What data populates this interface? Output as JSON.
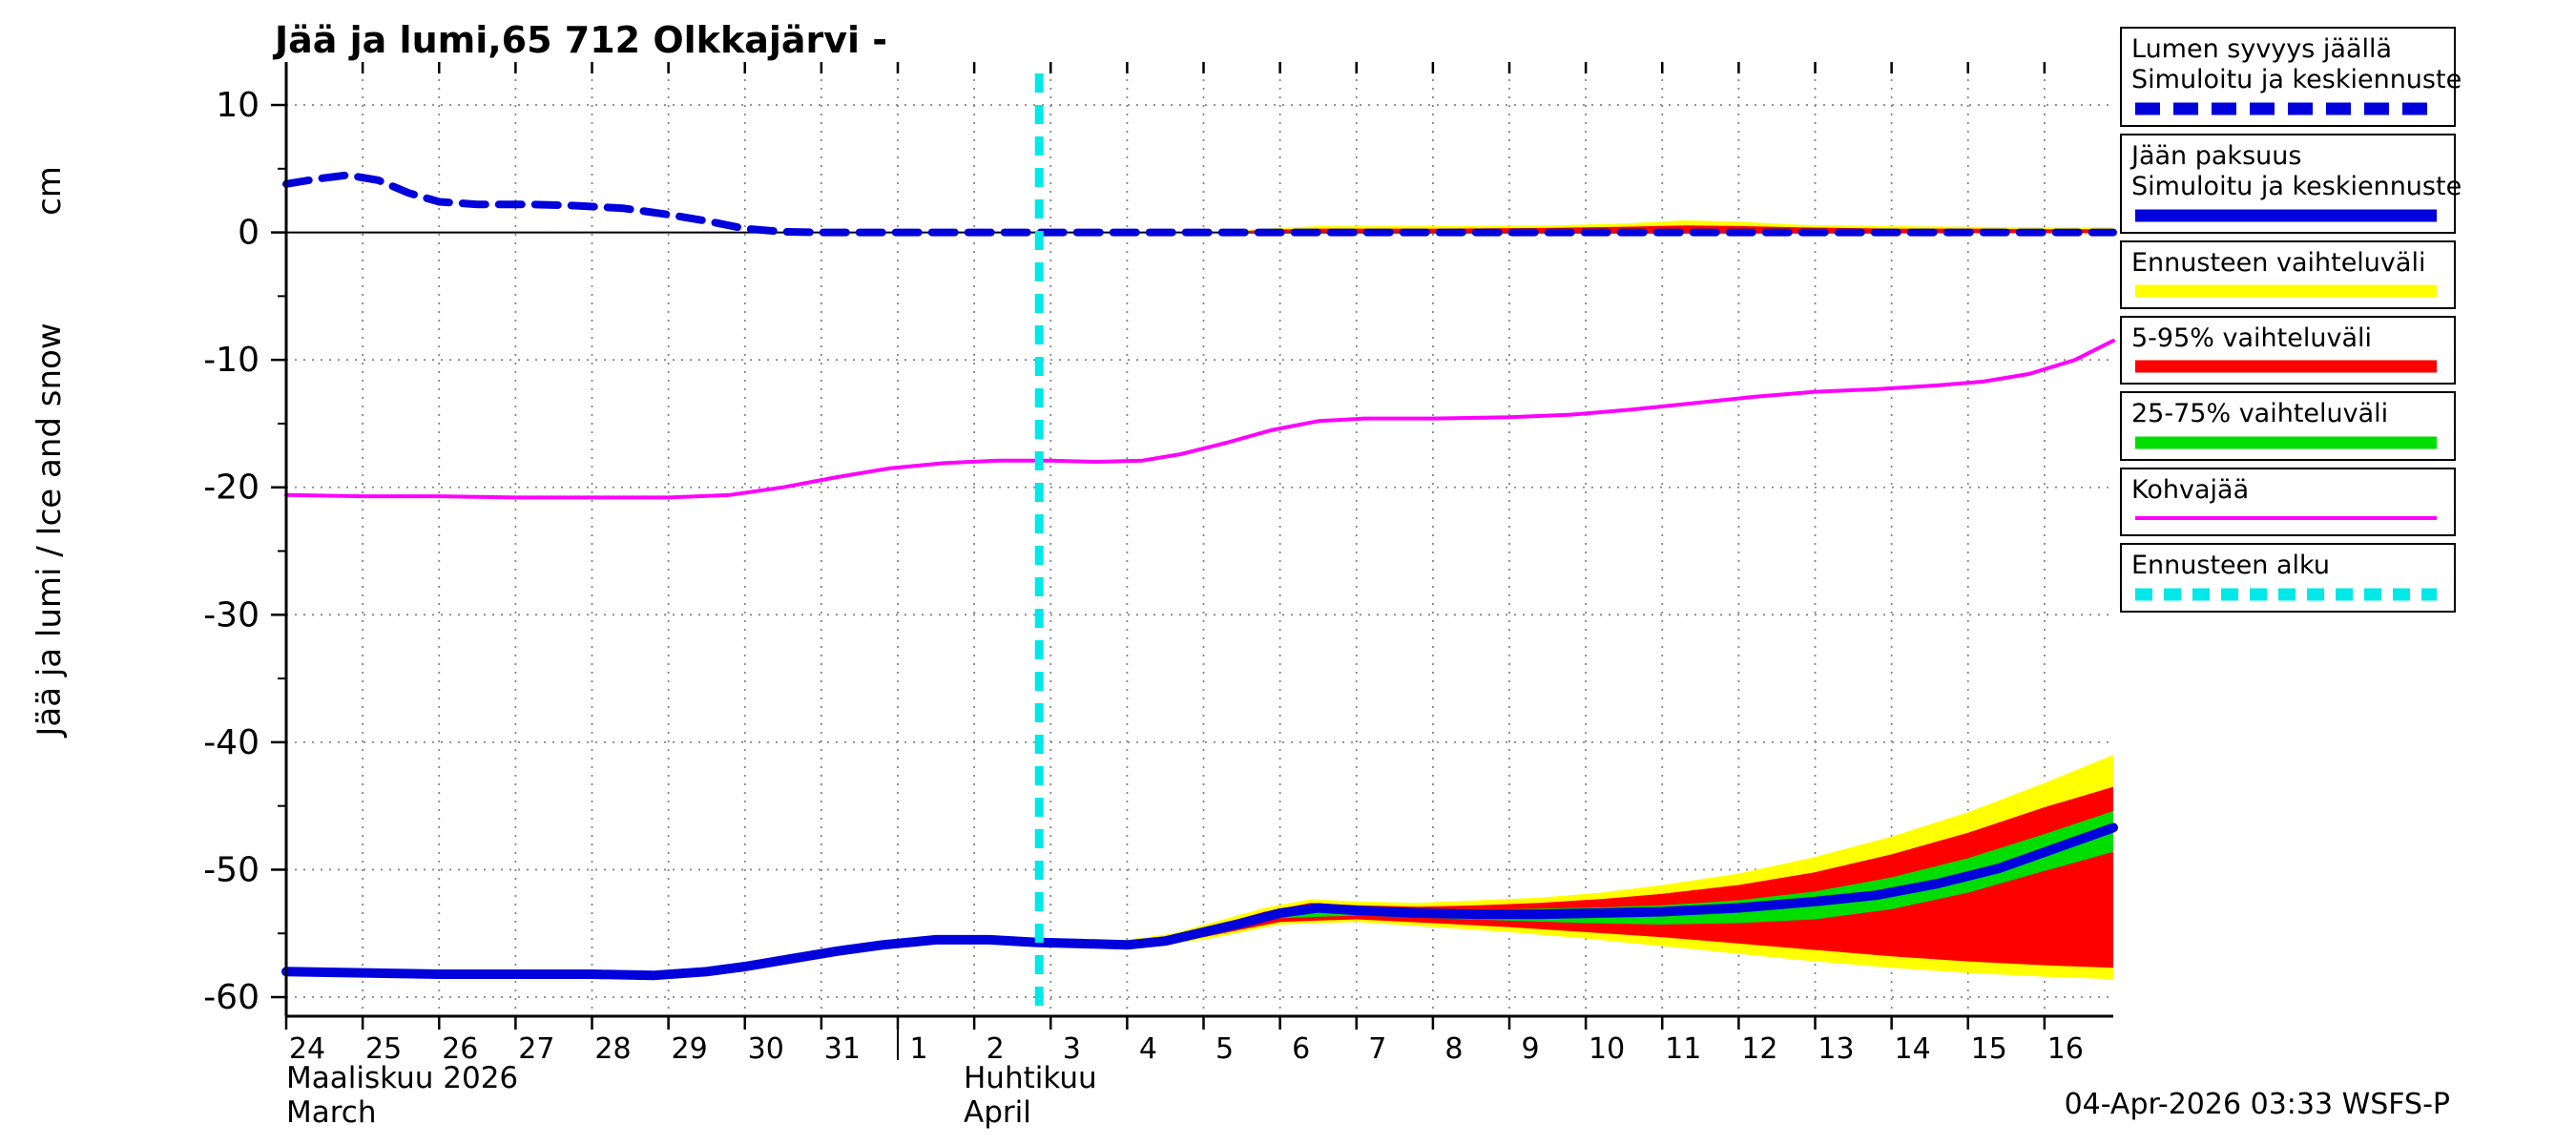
{
  "title": "Jää ja lumi,65 712 Olkkajärvi -",
  "footer": "04-Apr-2026 03:33 WSFS-P",
  "y_axis": {
    "unit": "cm",
    "label": "Jää ja lumi / Ice and snow",
    "ticks": [
      10,
      0,
      -10,
      -20,
      -30,
      -40,
      -50,
      -60
    ]
  },
  "x_axis": {
    "march_ticks": [
      "24",
      "25",
      "26",
      "27",
      "28",
      "29",
      "30",
      "31"
    ],
    "april_ticks": [
      "1",
      "2",
      "3",
      "4",
      "5",
      "6",
      "7",
      "8",
      "9",
      "10",
      "11",
      "12",
      "13",
      "14",
      "15",
      "16"
    ],
    "month_left_fi": "Maaliskuu 2026",
    "month_left_en": "March",
    "month_right_fi": "Huhtikuu",
    "month_right_en": "April"
  },
  "legend": {
    "items": [
      {
        "line1": "Lumen syvyys jäällä",
        "line2": "Simuloitu ja keskiennuste",
        "color": "#0000dd",
        "style": "dashed",
        "thick": true
      },
      {
        "line1": "Jään paksuus",
        "line2": "Simuloitu ja keskiennuste",
        "color": "#0000dd",
        "style": "solid",
        "thick": true
      },
      {
        "line1": "Ennusteen vaihteluväli",
        "color": "#ffff00",
        "style": "solid",
        "thick": true
      },
      {
        "line1": "5-95% vaihteluväli",
        "color": "#ff0000",
        "style": "solid",
        "thick": true
      },
      {
        "line1": "25-75% vaihteluväli",
        "color": "#00dd00",
        "style": "solid",
        "thick": true
      },
      {
        "line1": "Kohvajää",
        "color": "#ff00ff",
        "style": "solid",
        "thick": false
      },
      {
        "line1": "Ennusteen alku",
        "color": "#00e8e8",
        "style": "dashed",
        "thick": true
      }
    ]
  },
  "chart_data": {
    "type": "line",
    "title": "Jää ja lumi,65 712 Olkkajärvi -",
    "ylabel": "Jää ja lumi / Ice and snow (cm)",
    "ylim": [
      -61.5,
      13.4
    ],
    "x_encoding": "days since 24 March 2026 (0 = Mar 24, 8 = Apr 1, 23 = Apr 16)",
    "grid": true,
    "zero_line": true,
    "forecast_start_x": 9.85,
    "forecast_line_color": "#00e8e8",
    "series": [
      {
        "name": "kohvajaa",
        "label": "Kohvajää",
        "color": "#ff00ff",
        "width": 4,
        "points": [
          [
            0,
            -20.6
          ],
          [
            1,
            -20.7
          ],
          [
            2,
            -20.7
          ],
          [
            3,
            -20.8
          ],
          [
            4,
            -20.8
          ],
          [
            5,
            -20.8
          ],
          [
            5.8,
            -20.6
          ],
          [
            6.5,
            -20.0
          ],
          [
            7.2,
            -19.2
          ],
          [
            7.9,
            -18.5
          ],
          [
            8.6,
            -18.1
          ],
          [
            9.3,
            -17.9
          ],
          [
            10,
            -17.9
          ],
          [
            10.6,
            -18.0
          ],
          [
            11.2,
            -17.9
          ],
          [
            11.7,
            -17.4
          ],
          [
            12.3,
            -16.5
          ],
          [
            12.9,
            -15.5
          ],
          [
            13.5,
            -14.8
          ],
          [
            14.1,
            -14.6
          ],
          [
            15,
            -14.6
          ],
          [
            16,
            -14.5
          ],
          [
            16.8,
            -14.3
          ],
          [
            17.6,
            -13.9
          ],
          [
            18.4,
            -13.4
          ],
          [
            19.2,
            -12.9
          ],
          [
            20,
            -12.5
          ],
          [
            20.8,
            -12.3
          ],
          [
            21.6,
            -12.0
          ],
          [
            22.2,
            -11.7
          ],
          [
            22.8,
            -11.1
          ],
          [
            23.4,
            -10.0
          ],
          [
            23.9,
            -8.5
          ]
        ]
      },
      {
        "name": "ice-thickness-simulated-median",
        "label": "Jään paksuus, simuloitu ja keskiennuste",
        "color": "#0000dd",
        "width": 10,
        "points": [
          [
            0,
            -58.0
          ],
          [
            1,
            -58.1
          ],
          [
            2,
            -58.2
          ],
          [
            3,
            -58.2
          ],
          [
            4,
            -58.2
          ],
          [
            4.8,
            -58.3
          ],
          [
            5.5,
            -58.0
          ],
          [
            6,
            -57.6
          ],
          [
            6.6,
            -57.0
          ],
          [
            7.2,
            -56.4
          ],
          [
            7.8,
            -55.9
          ],
          [
            8.5,
            -55.5
          ],
          [
            9.2,
            -55.5
          ],
          [
            9.8,
            -55.7
          ],
          [
            10.4,
            -55.8
          ],
          [
            11,
            -55.9
          ],
          [
            11.5,
            -55.6
          ],
          [
            12,
            -54.9
          ],
          [
            12.5,
            -54.2
          ],
          [
            13,
            -53.4
          ],
          [
            13.5,
            -53.0
          ],
          [
            14,
            -53.2
          ],
          [
            14.8,
            -53.4
          ],
          [
            15.6,
            -53.5
          ],
          [
            16.4,
            -53.5
          ],
          [
            17.2,
            -53.4
          ],
          [
            18,
            -53.3
          ],
          [
            19,
            -53.0
          ],
          [
            20,
            -52.5
          ],
          [
            20.8,
            -52.0
          ],
          [
            21.6,
            -51.1
          ],
          [
            22.4,
            -49.9
          ],
          [
            23.2,
            -48.2
          ],
          [
            23.9,
            -46.7
          ]
        ]
      },
      {
        "name": "snow-depth-on-ice-simulated-median",
        "label": "Lumen syvyys jäällä, simuloitu ja keskiennuste",
        "color": "#0000dd",
        "width": 8,
        "dash": "24 14",
        "points": [
          [
            0,
            3.8
          ],
          [
            0.4,
            4.2
          ],
          [
            0.8,
            4.5
          ],
          [
            1.2,
            4.1
          ],
          [
            1.6,
            3.1
          ],
          [
            2,
            2.4
          ],
          [
            2.5,
            2.2
          ],
          [
            3.2,
            2.2
          ],
          [
            3.8,
            2.1
          ],
          [
            4.4,
            1.9
          ],
          [
            5,
            1.4
          ],
          [
            5.5,
            0.9
          ],
          [
            6,
            0.3
          ],
          [
            6.5,
            0.05
          ],
          [
            7,
            0
          ],
          [
            23.9,
            0
          ]
        ]
      }
    ],
    "bands": [
      {
        "name": "ice-forecast-range",
        "label": "Ennusteen vaihteluväli",
        "color": "#ffff00",
        "upper": [
          [
            10,
            -55.7
          ],
          [
            11,
            -55.5
          ],
          [
            11.6,
            -55.0
          ],
          [
            12.2,
            -54.0
          ],
          [
            12.8,
            -53.0
          ],
          [
            13.4,
            -52.3
          ],
          [
            14,
            -52.5
          ],
          [
            14.8,
            -52.6
          ],
          [
            15.6,
            -52.4
          ],
          [
            16.4,
            -52.2
          ],
          [
            17.2,
            -51.8
          ],
          [
            18,
            -51.2
          ],
          [
            19,
            -50.3
          ],
          [
            20,
            -49.0
          ],
          [
            21,
            -47.4
          ],
          [
            22,
            -45.5
          ],
          [
            23,
            -43.2
          ],
          [
            23.9,
            -41.0
          ]
        ],
        "lower": [
          [
            10,
            -55.9
          ],
          [
            11,
            -56.2
          ],
          [
            12,
            -55.5
          ],
          [
            13,
            -54.3
          ],
          [
            14,
            -54.1
          ],
          [
            15,
            -54.5
          ],
          [
            16,
            -54.9
          ],
          [
            17,
            -55.4
          ],
          [
            18,
            -56.0
          ],
          [
            19,
            -56.6
          ],
          [
            20,
            -57.2
          ],
          [
            21,
            -57.7
          ],
          [
            22,
            -58.1
          ],
          [
            23,
            -58.4
          ],
          [
            23.9,
            -58.6
          ]
        ]
      },
      {
        "name": "ice-5-95-range",
        "label": "5-95% vaihteluväli",
        "color": "#ff0000",
        "upper": [
          [
            10,
            -55.7
          ],
          [
            11,
            -55.6
          ],
          [
            11.6,
            -55.2
          ],
          [
            12.2,
            -54.3
          ],
          [
            12.8,
            -53.3
          ],
          [
            13.4,
            -52.6
          ],
          [
            14,
            -52.8
          ],
          [
            14.8,
            -52.9
          ],
          [
            15.6,
            -52.8
          ],
          [
            16.4,
            -52.6
          ],
          [
            17.2,
            -52.3
          ],
          [
            18,
            -51.9
          ],
          [
            19,
            -51.2
          ],
          [
            20,
            -50.2
          ],
          [
            21,
            -48.8
          ],
          [
            22,
            -47.1
          ],
          [
            23,
            -45.1
          ],
          [
            23.9,
            -43.5
          ]
        ],
        "lower": [
          [
            10,
            -55.9
          ],
          [
            11,
            -56.1
          ],
          [
            12,
            -55.3
          ],
          [
            13,
            -54.1
          ],
          [
            14,
            -53.9
          ],
          [
            15,
            -54.2
          ],
          [
            16,
            -54.5
          ],
          [
            17,
            -54.9
          ],
          [
            18,
            -55.3
          ],
          [
            19,
            -55.8
          ],
          [
            20,
            -56.3
          ],
          [
            21,
            -56.8
          ],
          [
            22,
            -57.2
          ],
          [
            23,
            -57.5
          ],
          [
            23.9,
            -57.7
          ]
        ]
      },
      {
        "name": "ice-25-75-range",
        "label": "25-75% vaihteluväli",
        "color": "#00dd00",
        "upper": [
          [
            10,
            -55.75
          ],
          [
            11,
            -55.7
          ],
          [
            11.6,
            -55.3
          ],
          [
            12.2,
            -54.5
          ],
          [
            12.8,
            -53.5
          ],
          [
            13.4,
            -52.8
          ],
          [
            14,
            -53.0
          ],
          [
            15,
            -53.1
          ],
          [
            16,
            -53.1
          ],
          [
            17,
            -53.0
          ],
          [
            18,
            -52.8
          ],
          [
            19,
            -52.4
          ],
          [
            20,
            -51.7
          ],
          [
            21,
            -50.6
          ],
          [
            22,
            -49.1
          ],
          [
            23,
            -47.2
          ],
          [
            23.9,
            -45.4
          ]
        ],
        "lower": [
          [
            10,
            -55.85
          ],
          [
            11,
            -56.0
          ],
          [
            12,
            -55.1
          ],
          [
            13,
            -53.8
          ],
          [
            14,
            -53.6
          ],
          [
            15,
            -53.8
          ],
          [
            16,
            -54.0
          ],
          [
            17,
            -54.2
          ],
          [
            18,
            -54.3
          ],
          [
            19,
            -54.2
          ],
          [
            20,
            -53.9
          ],
          [
            21,
            -53.1
          ],
          [
            22,
            -51.8
          ],
          [
            23,
            -50.1
          ],
          [
            23.9,
            -48.6
          ]
        ]
      },
      {
        "name": "snow-forecast-range",
        "label": "Ennusteen vaihteluväli (lumi)",
        "color": "#ffff00",
        "upper": [
          [
            12.3,
            0.05
          ],
          [
            12.8,
            0.3
          ],
          [
            13.5,
            0.5
          ],
          [
            15,
            0.5
          ],
          [
            16.5,
            0.55
          ],
          [
            17.5,
            0.7
          ],
          [
            18.3,
            0.95
          ],
          [
            19,
            0.85
          ],
          [
            19.8,
            0.6
          ],
          [
            21,
            0.5
          ],
          [
            22,
            0.45
          ],
          [
            23,
            0.4
          ],
          [
            23.9,
            0.4
          ]
        ],
        "lower": [
          [
            12.3,
            0
          ],
          [
            20,
            0
          ],
          [
            23.9,
            -0.15
          ]
        ]
      },
      {
        "name": "snow-5-95-range",
        "label": "5-95% vaihteluväli (lumi)",
        "color": "#ff0000",
        "upper": [
          [
            12.3,
            0.03
          ],
          [
            12.8,
            0.2
          ],
          [
            13.5,
            0.3
          ],
          [
            15,
            0.3
          ],
          [
            16.5,
            0.35
          ],
          [
            17.5,
            0.45
          ],
          [
            18.3,
            0.55
          ],
          [
            19,
            0.5
          ],
          [
            19.8,
            0.4
          ],
          [
            21,
            0.3
          ],
          [
            22,
            0.3
          ],
          [
            23,
            0.25
          ],
          [
            23.9,
            0.25
          ]
        ],
        "lower": [
          [
            12.3,
            0
          ],
          [
            23.9,
            -0.05
          ]
        ]
      }
    ]
  }
}
